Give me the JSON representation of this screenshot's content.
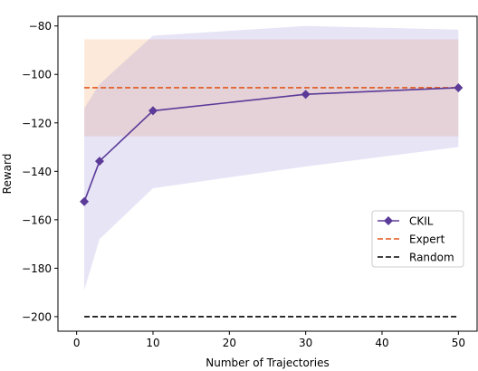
{
  "chart_data": {
    "type": "line",
    "title": "",
    "xlabel": "Number of Trajectories",
    "ylabel": "Reward",
    "xlim": [
      -2.45,
      52.45
    ],
    "ylim": [
      -206,
      -76
    ],
    "xticks": [
      0,
      10,
      20,
      30,
      40,
      50
    ],
    "yticks": [
      -200,
      -180,
      -160,
      -140,
      -120,
      -100,
      -80
    ],
    "grid": false,
    "legend_position": "center-right",
    "series": [
      {
        "name": "CKIL",
        "kind": "line-marker",
        "marker": "diamond",
        "color": "#5b3a98",
        "x": [
          1,
          3,
          10,
          30,
          50
        ],
        "y": [
          -152.5,
          -135.8,
          -115.0,
          -108.2,
          -105.5
        ],
        "band": {
          "x": [
            1,
            3,
            10,
            30,
            50
          ],
          "upper": [
            -114.0,
            -104.0,
            -84.0,
            -80.0,
            -81.5
          ],
          "lower": [
            -189.0,
            -168.0,
            -147.0,
            -138.0,
            -130.0
          ],
          "color": "#8878d0"
        }
      },
      {
        "name": "Expert",
        "kind": "dashed-hline",
        "color": "#e2571c",
        "y": -105.5,
        "x_range": [
          1,
          50
        ],
        "band": {
          "upper": -85.5,
          "lower": -125.5,
          "color": "#f5b07a"
        }
      },
      {
        "name": "Random",
        "kind": "dashed-hline",
        "color": "#000000",
        "y": -200,
        "x_range": [
          1,
          50
        ]
      }
    ]
  }
}
